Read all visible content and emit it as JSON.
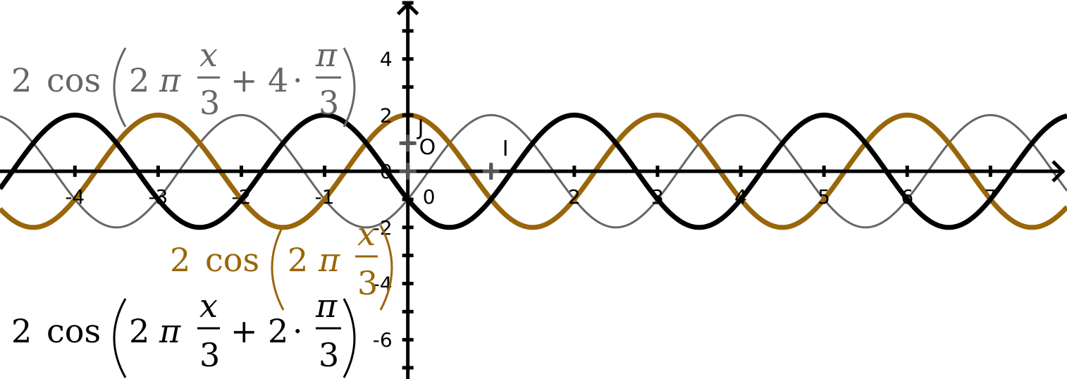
{
  "chart_data": {
    "type": "line",
    "title": "",
    "xlabel": "",
    "ylabel": "",
    "xlim": [
      -4.9,
      7.92
    ],
    "ylim": [
      -7.4,
      6.1
    ],
    "grid": false,
    "x_ticks": [
      -4,
      -3,
      -2,
      -1,
      0,
      1,
      2,
      3,
      4,
      5,
      6,
      7
    ],
    "x_tick_labels": [
      "-4",
      "-3",
      "-2",
      "-1",
      "0",
      "",
      "2",
      "3",
      "4",
      "5",
      "6",
      "7"
    ],
    "y_ticks": [
      -6,
      -4,
      -2,
      0,
      2,
      4
    ],
    "y_tick_labels": [
      "-6",
      "-4",
      "-2",
      "0",
      "2",
      "4"
    ],
    "points": [
      {
        "name": "O",
        "x": 0,
        "y": 0
      },
      {
        "name": "I",
        "x": 1,
        "y": 0
      },
      {
        "name": "J",
        "x": 0,
        "y": 1
      }
    ],
    "series": [
      {
        "color": "#666666",
        "amplitude": 2,
        "period": 3,
        "phase": 4.18879,
        "stroke": "thin",
        "formula": {
          "coef": "2",
          "fn": "cos",
          "a": "2",
          "pi": "π",
          "num": "x",
          "den": "3",
          "op": "+",
          "k": "4",
          "dot": "·",
          "pnum": "π",
          "pden": "3"
        }
      },
      {
        "color": "#99660a",
        "amplitude": 2,
        "period": 3,
        "phase": 0,
        "stroke": "thick",
        "formula": {
          "coef": "2",
          "fn": "cos",
          "a": "2",
          "pi": "π",
          "num": "x",
          "den": "3"
        }
      },
      {
        "color": "#000000",
        "amplitude": 2,
        "period": 3,
        "phase": 2.0944,
        "stroke": "thick",
        "formula": {
          "coef": "2",
          "fn": "cos",
          "a": "2",
          "pi": "π",
          "num": "x",
          "den": "3",
          "op": "+",
          "k": "2",
          "dot": "·",
          "pnum": "π",
          "pden": "3"
        }
      }
    ]
  }
}
